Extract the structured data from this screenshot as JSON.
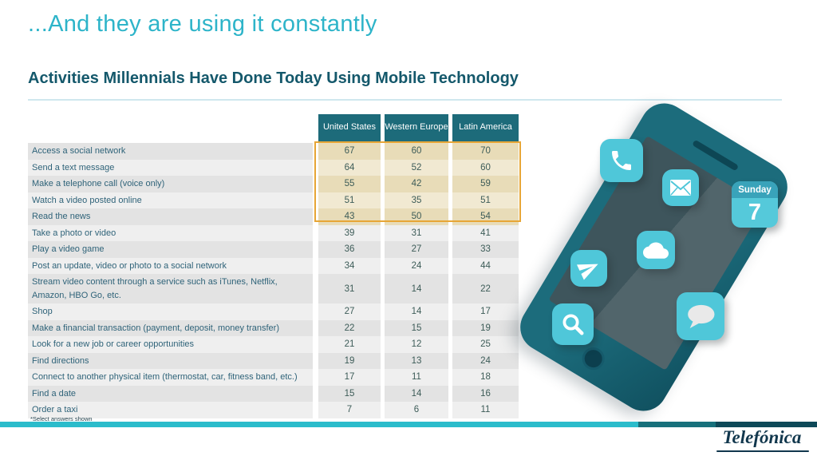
{
  "slide": {
    "title": "...And they are using it constantly",
    "subtitle": "Activities Millennials Have Done Today Using Mobile Technology",
    "footnote": "*Select answers shown",
    "brand_logo": "Telefónica"
  },
  "table": {
    "column_headers": [
      "United States",
      "Western Europe",
      "Latin America"
    ],
    "rows": [
      {
        "label": "Access a social network",
        "values": [
          67,
          60,
          70
        ],
        "highlighted": true
      },
      {
        "label": "Send a text message",
        "values": [
          64,
          52,
          60
        ],
        "highlighted": true
      },
      {
        "label": "Make a telephone call (voice only)",
        "values": [
          55,
          42,
          59
        ],
        "highlighted": true
      },
      {
        "label": "Watch a video posted online",
        "values": [
          51,
          35,
          51
        ],
        "highlighted": true
      },
      {
        "label": "Read the news",
        "values": [
          43,
          50,
          54
        ],
        "highlighted": true
      },
      {
        "label": "Take a photo or video",
        "values": [
          39,
          31,
          41
        ],
        "highlighted": false
      },
      {
        "label": "Play a video game",
        "values": [
          36,
          27,
          33
        ],
        "highlighted": false
      },
      {
        "label": "Post an update, video or photo to a social network",
        "values": [
          34,
          24,
          44
        ],
        "highlighted": false
      },
      {
        "label": "Stream video content through a service such as iTunes, Netflix, Amazon, HBO Go, etc.",
        "values": [
          31,
          14,
          22
        ],
        "highlighted": false
      },
      {
        "label": "Shop",
        "values": [
          27,
          14,
          17
        ],
        "highlighted": false
      },
      {
        "label": "Make a financial transaction (payment, deposit, money transfer)",
        "values": [
          22,
          15,
          19
        ],
        "highlighted": false
      },
      {
        "label": "Look for a new job or career opportunities",
        "values": [
          21,
          12,
          25
        ],
        "highlighted": false
      },
      {
        "label": "Find directions",
        "values": [
          19,
          13,
          24
        ],
        "highlighted": false
      },
      {
        "label": "Connect to another physical item (thermostat, car, fitness band, etc.)",
        "values": [
          17,
          11,
          18
        ],
        "highlighted": false
      },
      {
        "label": "Find a date",
        "values": [
          15,
          14,
          16
        ],
        "highlighted": false
      },
      {
        "label": "Order a taxi",
        "values": [
          7,
          6,
          11
        ],
        "highlighted": false
      }
    ]
  },
  "phone_illustration": {
    "icons": [
      "phone-call",
      "mail",
      "calendar",
      "cloud",
      "send",
      "search",
      "chat"
    ],
    "calendar": {
      "day_name": "Sunday",
      "day_number": "7"
    }
  },
  "colors": {
    "title": "#2db4c9",
    "subtitle": "#14586b",
    "header_bg": "#1d6b7a",
    "highlight_cell": "#e8dcb8",
    "highlight_border": "#e7a636",
    "row_gray_dark": "#e3e3e3",
    "row_gray_light": "#efefef",
    "icon_bg": "#4fc7d9",
    "phone_body": "#1c6c7c",
    "bar_cyan": "#2bbccb",
    "bar_teal": "#17707b",
    "bar_dark": "#0e4958"
  }
}
